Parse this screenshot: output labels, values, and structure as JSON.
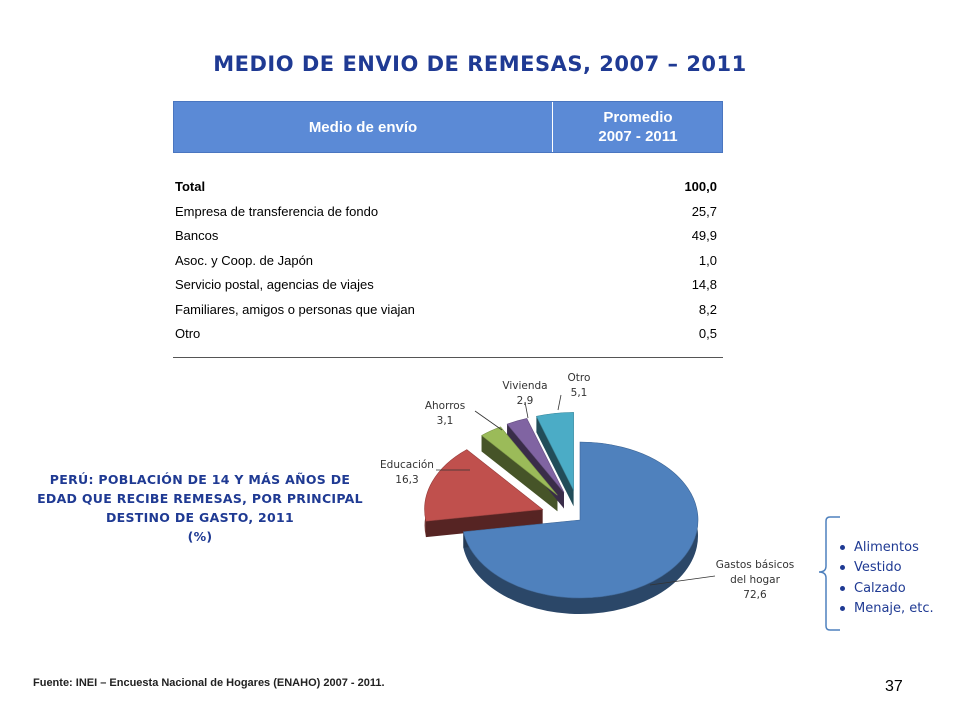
{
  "title": "MEDIO DE ENVIO DE REMESAS, 2007 – 2011",
  "table": {
    "header_col1": "Medio de envío",
    "header_col2_line1": "Promedio",
    "header_col2_line2": "2007 - 2011",
    "rows": [
      {
        "label": "Total",
        "value": "100,0"
      },
      {
        "label": "Empresa de transferencia de fondo",
        "value": "25,7"
      },
      {
        "label": "Bancos",
        "value": "49,9"
      },
      {
        "label": "Asoc. y Coop. de Japón",
        "value": "1,0"
      },
      {
        "label": "Servicio postal, agencias de viajes",
        "value": "14,8"
      },
      {
        "label": "Familiares, amigos o personas que viajan",
        "value": "8,2"
      },
      {
        "label": "Otro",
        "value": "0,5"
      }
    ]
  },
  "chart_subtitle": {
    "line1": "PERÚ: POBLACIÓN DE 14 Y MÁS AÑOS DE",
    "line2": "EDAD QUE RECIBE REMESAS, POR PRINCIPAL",
    "line3": "DESTINO DE GASTO, 2011",
    "line4": "(%)"
  },
  "chart_data": {
    "type": "pie",
    "slices": [
      {
        "label": "Gastos básicos del hogar",
        "label_line1": "Gastos básicos",
        "label_line2": "del hogar",
        "value_text": "72,6",
        "value": 72.6,
        "color": "#4f81bd"
      },
      {
        "label": "Educación",
        "label_line1": "Educación",
        "label_line2": "",
        "value_text": "16,3",
        "value": 16.3,
        "color": "#c0504d"
      },
      {
        "label": "Ahorros",
        "label_line1": "Ahorros",
        "label_line2": "",
        "value_text": "3,1",
        "value": 3.1,
        "color": "#9bbb59"
      },
      {
        "label": "Vivienda",
        "label_line1": "Vivienda",
        "label_line2": "",
        "value_text": "2,9",
        "value": 2.9,
        "color": "#8064a2"
      },
      {
        "label": "Otro",
        "label_line1": "Otro",
        "label_line2": "",
        "value_text": "5,1",
        "value": 5.1,
        "color": "#4bacc6"
      }
    ]
  },
  "bullets": [
    "Alimentos",
    "Vestido",
    "Calzado",
    "Menaje, etc."
  ],
  "footer": "Fuente: INEI – Encuesta Nacional de Hogares (ENAHO) 2007 - 2011.",
  "page_number": "37"
}
